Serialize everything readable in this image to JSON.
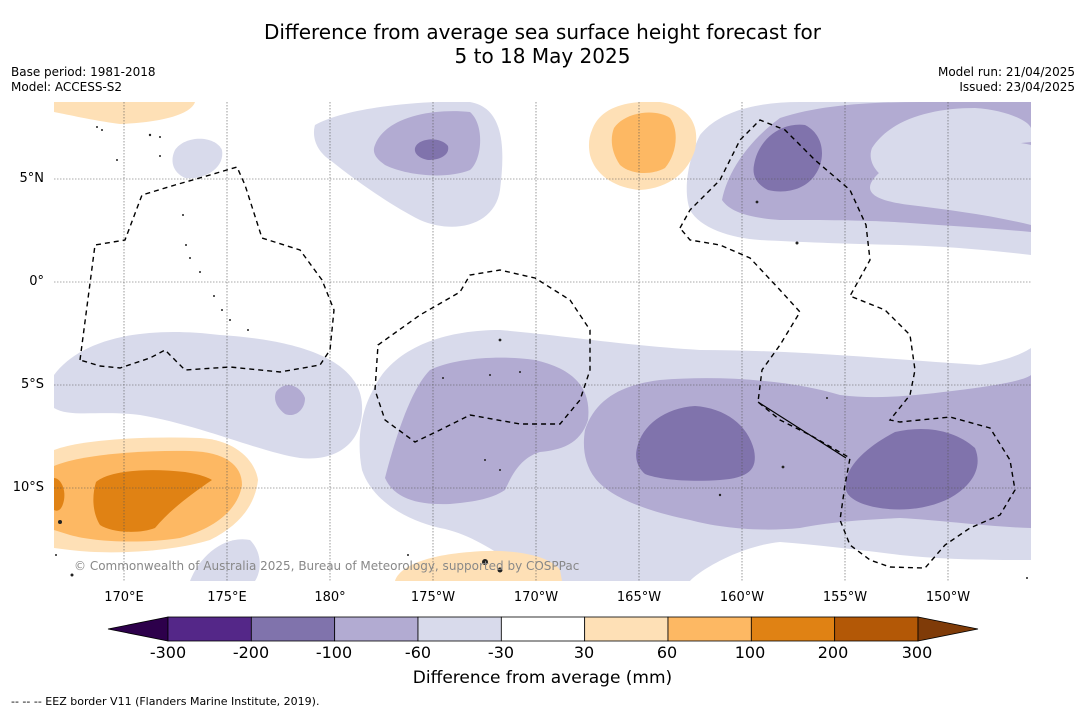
{
  "title": {
    "line1": "Difference from average sea surface height forecast for",
    "line2": "5 to 18 May 2025"
  },
  "meta_left": {
    "base_period": "Base period: 1981-2018",
    "model": "Model: ACCESS-S2"
  },
  "meta_right": {
    "model_run": "Model run: 21/04/2025",
    "issued": "Issued: 23/04/2025"
  },
  "map": {
    "latitude_labels": [
      "5°N",
      "0°",
      "5°S",
      "10°S"
    ],
    "longitude_labels": [
      "170°E",
      "175°E",
      "180°",
      "175°W",
      "170°W",
      "165°W",
      "160°W",
      "155°W",
      "150°W"
    ],
    "copyright": "© Commonwealth of Australia 2025, Bureau of Meteorology, supported by COSPPac",
    "eez_border_style": "dashed black"
  },
  "colorbar": {
    "ticks": [
      "-300",
      "-200",
      "-100",
      "-60",
      "-30",
      "30",
      "60",
      "100",
      "200",
      "300"
    ],
    "colors": [
      "#2d004b",
      "#542788",
      "#8073ac",
      "#b2abd2",
      "#d8daeb",
      "#ffffff",
      "#fee0b6",
      "#fdb863",
      "#e08214",
      "#b35806",
      "#7f3b08"
    ],
    "label": "Difference from average (mm)",
    "extends": "both"
  },
  "footnote": "--  --  -- EEZ border V11 (Flanders Marine Institute, 2019)."
}
